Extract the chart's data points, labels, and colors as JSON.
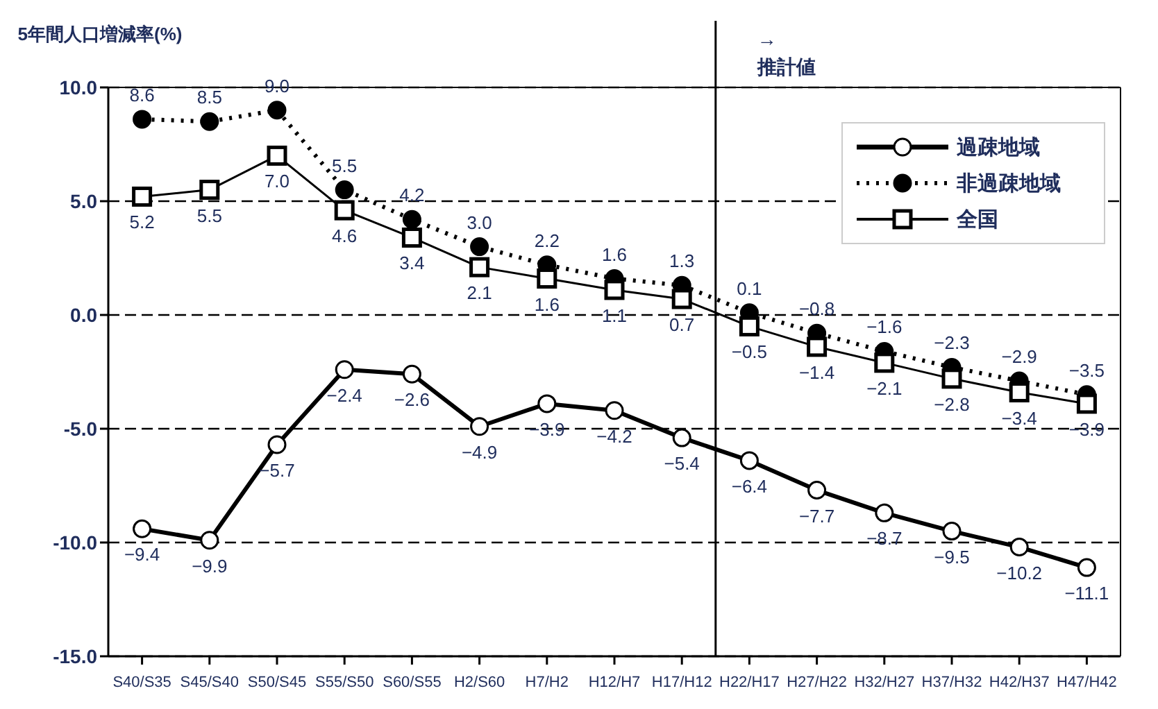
{
  "chart_data": {
    "type": "line",
    "annotations": [
      "5年間人口増減率(%)"
    ],
    "categories": [
      "S40/S35",
      "S45/S40",
      "S50/S45",
      "S55/S50",
      "S60/S55",
      "H2/S60",
      "H7/H2",
      "H12/H7",
      "H17/H12",
      "H22/H17",
      "H27/H22",
      "H32/H27",
      "H37/H32",
      "H42/H37",
      "H47/H42"
    ],
    "series": [
      {
        "name": "過疎地域",
        "color": "#000000",
        "marker": "circle",
        "line_style": "solid",
        "values": [
          -9.4,
          -9.9,
          -5.7,
          -2.4,
          -2.6,
          -4.9,
          -3.9,
          -4.2,
          -5.4,
          -6.4,
          -7.7,
          -8.7,
          -9.5,
          -10.2,
          -11.1
        ],
        "value_labels": [
          "−9.4",
          "−9.9",
          "−5.7",
          "−2.4",
          "−2.6",
          "−4.9",
          "−3.9",
          "−4.2",
          "−5.4",
          "−6.4",
          "−7.7",
          "−8.7",
          "−9.5",
          "−10.2",
          "−11.1"
        ]
      },
      {
        "name": "非過疎地域",
        "color": "#000000",
        "marker": "circle",
        "line_style": "dotted",
        "values": [
          8.6,
          8.5,
          9.0,
          5.5,
          4.2,
          3.0,
          2.2,
          1.6,
          1.3,
          0.1,
          -0.8,
          -1.6,
          -2.3,
          -2.9,
          -3.5
        ],
        "value_labels": [
          "8.6",
          "8.5",
          "9.0",
          "5.5",
          "4.2",
          "3.0",
          "2.2",
          "1.6",
          "1.3",
          "0.1",
          "−0.8",
          "−1.6",
          "−2.3",
          "−2.9",
          "−3.5"
        ]
      },
      {
        "name": "全国",
        "color": "#000000",
        "marker": "square",
        "line_style": "solid",
        "values": [
          5.2,
          5.5,
          7.0,
          4.6,
          3.4,
          2.1,
          1.6,
          1.1,
          0.7,
          -0.5,
          -1.4,
          -2.1,
          -2.8,
          -3.4,
          -3.9
        ],
        "value_labels": [
          "5.2",
          "5.5",
          "7.0",
          "4.6",
          "3.4",
          "2.1",
          "1.6",
          "1.1",
          "0.7",
          "−0.5",
          "−1.4",
          "−2.1",
          "−2.8",
          "−3.4",
          "−3.9"
        ]
      }
    ],
    "ylim": [
      -15,
      10
    ],
    "yticks": [
      {
        "value": -15,
        "label": "-15.0"
      },
      {
        "value": -10,
        "label": "-10.0"
      },
      {
        "value": -5,
        "label": "-5.0"
      },
      {
        "value": 0,
        "label": "0.0"
      },
      {
        "value": 5,
        "label": "5.0"
      },
      {
        "value": 10,
        "label": "10.0"
      }
    ],
    "grid": "y",
    "legend": "top right",
    "ref_lines": [
      {
        "axis": "x",
        "value": "H22/H17",
        "label": "→ 推計値",
        "color": "#000000"
      }
    ]
  }
}
